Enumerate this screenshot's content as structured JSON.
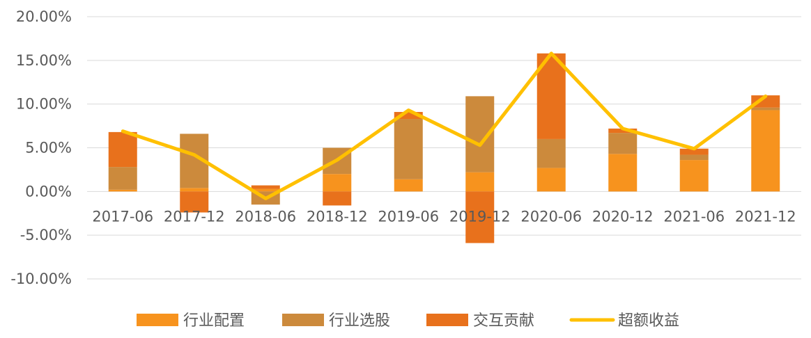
{
  "chart_data": {
    "type": "bar",
    "stacked": true,
    "categories": [
      "2017-06",
      "2017-12",
      "2018-06",
      "2018-12",
      "2019-06",
      "2019-12",
      "2020-06",
      "2020-12",
      "2021-06",
      "2021-12"
    ],
    "series": [
      {
        "name": "行业配置",
        "kind": "bar",
        "color": "#F7931E",
        "values": [
          0.2,
          0.4,
          0.3,
          2.0,
          1.4,
          2.2,
          2.7,
          4.3,
          3.6,
          9.3
        ]
      },
      {
        "name": "行业选股",
        "kind": "bar",
        "color": "#CC8A3C",
        "values": [
          2.6,
          6.2,
          -1.5,
          3.0,
          6.9,
          8.7,
          3.3,
          2.4,
          0.6,
          0.3
        ]
      },
      {
        "name": "交互贡献",
        "kind": "bar",
        "color": "#E8711C",
        "values": [
          4.0,
          -2.4,
          0.4,
          -1.6,
          0.8,
          -5.9,
          9.8,
          0.5,
          0.7,
          1.4
        ]
      },
      {
        "name": "超额收益",
        "kind": "line",
        "color": "#FFC000",
        "values": [
          6.9,
          4.2,
          -0.8,
          3.6,
          9.3,
          5.3,
          15.8,
          7.2,
          4.9,
          10.9
        ]
      }
    ],
    "yticks": [
      "20.00%",
      "15.00%",
      "10.00%",
      "5.00%",
      "0.00%",
      "-5.00%",
      "-10.00%"
    ],
    "ylim": [
      -10,
      20
    ],
    "grid": true,
    "legend": "bottom",
    "title": "",
    "xlabel": "",
    "ylabel": ""
  }
}
